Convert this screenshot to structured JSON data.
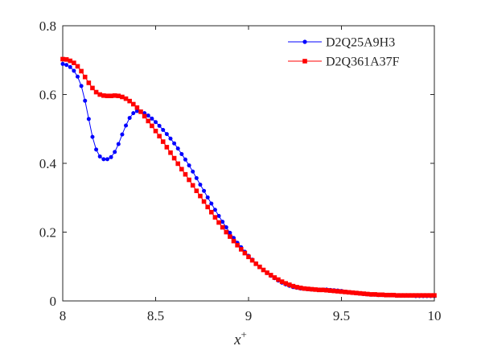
{
  "chart_data": {
    "type": "line",
    "title": "",
    "xlabel": "x",
    "xlabel_superscript": "+",
    "ylabel": "",
    "xlim": [
      8,
      10
    ],
    "ylim": [
      0,
      0.8
    ],
    "xticks": [
      8,
      8.5,
      9,
      9.5,
      10
    ],
    "xtick_labels": [
      "8",
      "8.5",
      "9",
      "9.5",
      "10"
    ],
    "yticks": [
      0,
      0.2,
      0.4,
      0.6,
      0.8
    ],
    "ytick_labels": [
      "0",
      "0.2",
      "0.4",
      "0.6",
      "0.8"
    ],
    "grid": false,
    "legend_position": "top-right",
    "series": [
      {
        "name": "D2Q25A9H3",
        "color": "#0000ff",
        "marker": "circle",
        "x": [
          8.0,
          8.02,
          8.04,
          8.06,
          8.08,
          8.1,
          8.12,
          8.14,
          8.16,
          8.18,
          8.2,
          8.22,
          8.24,
          8.26,
          8.28,
          8.3,
          8.32,
          8.34,
          8.36,
          8.38,
          8.4,
          8.42,
          8.44,
          8.46,
          8.48,
          8.5,
          8.52,
          8.54,
          8.56,
          8.58,
          8.6,
          8.62,
          8.64,
          8.66,
          8.68,
          8.7,
          8.72,
          8.74,
          8.76,
          8.78,
          8.8,
          8.82,
          8.84,
          8.86,
          8.88,
          8.9,
          8.92,
          8.94,
          8.96,
          8.98,
          9.0,
          9.02,
          9.04,
          9.06,
          9.08,
          9.1,
          9.12,
          9.14,
          9.16,
          9.18,
          9.2,
          9.22,
          9.24,
          9.26,
          9.28,
          9.3,
          9.32,
          9.34,
          9.36,
          9.38,
          9.4,
          9.42,
          9.44,
          9.46,
          9.48,
          9.5,
          9.52,
          9.54,
          9.56,
          9.58,
          9.6,
          9.62,
          9.64,
          9.66,
          9.68,
          9.7,
          9.72,
          9.74,
          9.76,
          9.78,
          9.8,
          9.82,
          9.84,
          9.86,
          9.88,
          9.9,
          9.92,
          9.94,
          9.96,
          9.98,
          10.0
        ],
        "y": [
          0.689,
          0.686,
          0.68,
          0.669,
          0.652,
          0.625,
          0.582,
          0.529,
          0.477,
          0.44,
          0.42,
          0.412,
          0.412,
          0.418,
          0.433,
          0.456,
          0.484,
          0.51,
          0.532,
          0.546,
          0.552,
          0.551,
          0.546,
          0.539,
          0.53,
          0.52,
          0.509,
          0.497,
          0.485,
          0.472,
          0.458,
          0.443,
          0.427,
          0.411,
          0.394,
          0.376,
          0.357,
          0.338,
          0.32,
          0.301,
          0.283,
          0.265,
          0.247,
          0.23,
          0.214,
          0.198,
          0.183,
          0.169,
          0.156,
          0.143,
          0.131,
          0.12,
          0.109,
          0.099,
          0.09,
          0.081,
          0.073,
          0.066,
          0.059,
          0.053,
          0.048,
          0.044,
          0.04,
          0.038,
          0.036,
          0.035,
          0.034,
          0.033,
          0.033,
          0.033,
          0.033,
          0.033,
          0.032,
          0.031,
          0.03,
          0.029,
          0.027,
          0.025,
          0.023,
          0.022,
          0.021,
          0.02,
          0.019,
          0.018,
          0.018,
          0.017,
          0.017,
          0.016,
          0.016,
          0.016,
          0.015,
          0.015,
          0.015,
          0.015,
          0.015,
          0.014,
          0.014,
          0.014,
          0.014,
          0.014,
          0.014
        ]
      },
      {
        "name": "D2Q361A37F",
        "color": "#ff0000",
        "marker": "square",
        "x": [
          8.0,
          8.02,
          8.04,
          8.06,
          8.08,
          8.1,
          8.12,
          8.14,
          8.16,
          8.18,
          8.2,
          8.22,
          8.24,
          8.26,
          8.28,
          8.3,
          8.32,
          8.34,
          8.36,
          8.38,
          8.4,
          8.42,
          8.44,
          8.46,
          8.48,
          8.5,
          8.52,
          8.54,
          8.56,
          8.58,
          8.6,
          8.62,
          8.64,
          8.66,
          8.68,
          8.7,
          8.72,
          8.74,
          8.76,
          8.78,
          8.8,
          8.82,
          8.84,
          8.86,
          8.88,
          8.9,
          8.92,
          8.94,
          8.96,
          8.98,
          9.0,
          9.02,
          9.04,
          9.06,
          9.08,
          9.1,
          9.12,
          9.14,
          9.16,
          9.18,
          9.2,
          9.22,
          9.24,
          9.26,
          9.28,
          9.3,
          9.32,
          9.34,
          9.36,
          9.38,
          9.4,
          9.42,
          9.44,
          9.46,
          9.48,
          9.5,
          9.52,
          9.54,
          9.56,
          9.58,
          9.6,
          9.62,
          9.64,
          9.66,
          9.68,
          9.7,
          9.72,
          9.74,
          9.76,
          9.78,
          9.8,
          9.82,
          9.84,
          9.86,
          9.88,
          9.9,
          9.92,
          9.94,
          9.96,
          9.98,
          10.0
        ],
        "y": [
          0.703,
          0.702,
          0.698,
          0.692,
          0.682,
          0.668,
          0.651,
          0.634,
          0.619,
          0.607,
          0.6,
          0.597,
          0.596,
          0.596,
          0.597,
          0.596,
          0.593,
          0.588,
          0.581,
          0.572,
          0.562,
          0.55,
          0.537,
          0.523,
          0.509,
          0.494,
          0.479,
          0.463,
          0.447,
          0.431,
          0.415,
          0.399,
          0.383,
          0.368,
          0.352,
          0.336,
          0.32,
          0.305,
          0.289,
          0.273,
          0.258,
          0.243,
          0.228,
          0.214,
          0.2,
          0.187,
          0.174,
          0.162,
          0.15,
          0.139,
          0.128,
          0.118,
          0.108,
          0.099,
          0.09,
          0.082,
          0.075,
          0.068,
          0.062,
          0.056,
          0.051,
          0.047,
          0.043,
          0.04,
          0.038,
          0.036,
          0.035,
          0.034,
          0.033,
          0.032,
          0.032,
          0.031,
          0.03,
          0.029,
          0.028,
          0.027,
          0.026,
          0.025,
          0.024,
          0.023,
          0.022,
          0.021,
          0.02,
          0.019,
          0.019,
          0.018,
          0.018,
          0.017,
          0.017,
          0.017,
          0.016,
          0.016,
          0.016,
          0.016,
          0.016,
          0.016,
          0.016,
          0.016,
          0.016,
          0.016,
          0.016
        ]
      }
    ]
  }
}
